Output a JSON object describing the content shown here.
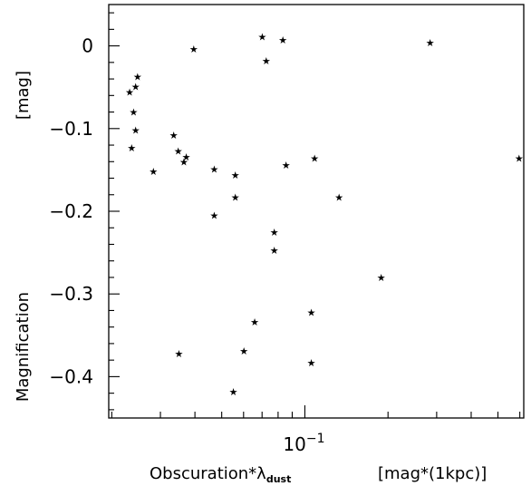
{
  "chart_data": {
    "type": "scatter",
    "title": "",
    "xlabel": "Obscuration*λ",
    "xlabel_subscript": "dust",
    "xunit": "[mag*(1kpc)]",
    "ylabel": "Magnification",
    "yunit": "[mag]",
    "xscale": "log",
    "xlim": [
      0.0195,
      0.62
    ],
    "ylim": [
      -0.45,
      0.05
    ],
    "grid": false,
    "legend": "none",
    "marker": "star",
    "x_ticks": [
      {
        "value": 0.1,
        "base": "10",
        "exp": "−1"
      }
    ],
    "y_ticks": [
      {
        "value": 0,
        "label": "0"
      },
      {
        "value": -0.1,
        "label": "−0.1"
      },
      {
        "value": -0.2,
        "label": "−0.2"
      },
      {
        "value": -0.3,
        "label": "−0.3"
      },
      {
        "value": -0.4,
        "label": "−0.4"
      }
    ],
    "points": [
      {
        "x": 0.0232,
        "y": -0.056
      },
      {
        "x": 0.0236,
        "y": -0.123
      },
      {
        "x": 0.024,
        "y": -0.08
      },
      {
        "x": 0.0244,
        "y": -0.049
      },
      {
        "x": 0.0244,
        "y": -0.102
      },
      {
        "x": 0.0248,
        "y": -0.037
      },
      {
        "x": 0.0283,
        "y": -0.152
      },
      {
        "x": 0.0335,
        "y": -0.108
      },
      {
        "x": 0.0348,
        "y": -0.127
      },
      {
        "x": 0.035,
        "y": -0.372
      },
      {
        "x": 0.0365,
        "y": -0.14
      },
      {
        "x": 0.0372,
        "y": -0.134
      },
      {
        "x": 0.0396,
        "y": -0.004
      },
      {
        "x": 0.047,
        "y": -0.149
      },
      {
        "x": 0.047,
        "y": -0.205
      },
      {
        "x": 0.0551,
        "y": -0.418
      },
      {
        "x": 0.056,
        "y": -0.156
      },
      {
        "x": 0.056,
        "y": -0.183
      },
      {
        "x": 0.0602,
        "y": -0.369
      },
      {
        "x": 0.0658,
        "y": -0.334
      },
      {
        "x": 0.0701,
        "y": 0.011
      },
      {
        "x": 0.0725,
        "y": -0.018
      },
      {
        "x": 0.0775,
        "y": -0.225
      },
      {
        "x": 0.0775,
        "y": -0.247
      },
      {
        "x": 0.0833,
        "y": 0.007
      },
      {
        "x": 0.0855,
        "y": -0.144
      },
      {
        "x": 0.1055,
        "y": -0.322
      },
      {
        "x": 0.1055,
        "y": -0.383
      },
      {
        "x": 0.1085,
        "y": -0.136
      },
      {
        "x": 0.133,
        "y": -0.183
      },
      {
        "x": 0.189,
        "y": -0.28
      },
      {
        "x": 0.284,
        "y": 0.004
      },
      {
        "x": 0.596,
        "y": -0.136
      }
    ]
  }
}
